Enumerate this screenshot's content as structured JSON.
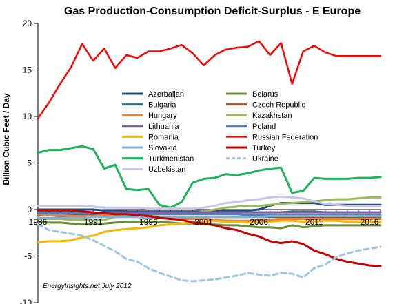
{
  "chart_data": {
    "type": "line",
    "title": "Gas Production-Consumption  Deficit-Surplus - E Europe",
    "xlabel": "",
    "ylabel": "Billion Cubic Feet / Day",
    "xlim": [
      1986,
      2017
    ],
    "ylim": [
      -10,
      20
    ],
    "x_ticks": [
      "1986",
      "1991",
      "1996",
      "2001",
      "2006",
      "2011",
      "2016"
    ],
    "y_ticks": [
      "20",
      "15",
      "10",
      "5",
      "0",
      "-5",
      "-10"
    ],
    "grid": false,
    "legend_position": "center",
    "source_note": "EnergyInsights.net July 2012",
    "x": [
      1986,
      1987,
      1988,
      1989,
      1990,
      1991,
      1992,
      1993,
      1994,
      1995,
      1996,
      1997,
      1998,
      1999,
      2000,
      2001,
      2002,
      2003,
      2004,
      2005,
      2006,
      2007,
      2008,
      2009,
      2010,
      2011,
      2012,
      2013,
      2014,
      2015,
      2016,
      2017
    ],
    "series": [
      {
        "name": "Azerbaijan",
        "color": "#1f4e79",
        "dash": false,
        "width": 3,
        "values": [
          0,
          0,
          0,
          0,
          0,
          0,
          -0.1,
          -0.1,
          -0.2,
          -0.2,
          -0.2,
          -0.2,
          -0.2,
          -0.2,
          -0.2,
          -0.2,
          -0.2,
          -0.1,
          -0.1,
          -0.1,
          0,
          0.4,
          0.7,
          0.7,
          0.7,
          0.7,
          0.5,
          0.5,
          0.5,
          0.5,
          0.5,
          0.5
        ]
      },
      {
        "name": "Belarus",
        "color": "#6b8e3a",
        "dash": false,
        "width": 3,
        "values": [
          -1.3,
          -1.4,
          -1.4,
          -1.5,
          -1.6,
          -1.6,
          -1.5,
          -1.4,
          -1.3,
          -1.3,
          -1.3,
          -1.3,
          -1.4,
          -1.5,
          -1.5,
          -1.6,
          -1.6,
          -1.7,
          -1.7,
          -1.8,
          -1.9,
          -1.9,
          -2.0,
          -1.7,
          -1.9,
          -1.8,
          -1.7,
          -1.7,
          -1.7,
          -1.7,
          -1.7,
          -1.7
        ]
      },
      {
        "name": "Bulgaria",
        "color": "#2e6f82",
        "dash": false,
        "width": 3,
        "values": [
          -0.6,
          -0.6,
          -0.6,
          -0.6,
          -0.6,
          -0.5,
          -0.5,
          -0.5,
          -0.5,
          -0.5,
          -0.5,
          -0.4,
          -0.4,
          -0.3,
          -0.3,
          -0.3,
          -0.3,
          -0.3,
          -0.3,
          -0.3,
          -0.3,
          -0.3,
          -0.3,
          -0.2,
          -0.2,
          -0.2,
          -0.3,
          -0.3,
          -0.3,
          -0.3,
          -0.3,
          -0.3
        ]
      },
      {
        "name": "Czech Republic",
        "color": "#a0522d",
        "dash": false,
        "width": 3,
        "values": [
          -0.6,
          -0.6,
          -0.7,
          -0.7,
          -0.7,
          -0.7,
          -0.7,
          -0.7,
          -0.7,
          -0.7,
          -0.8,
          -0.8,
          -0.8,
          -0.8,
          -0.8,
          -0.8,
          -0.8,
          -0.8,
          -0.8,
          -0.8,
          -0.8,
          -0.8,
          -0.8,
          -0.8,
          -0.8,
          -0.8,
          -0.8,
          -0.8,
          -0.8,
          -0.8,
          -0.8,
          -0.8
        ]
      },
      {
        "name": "Hungary",
        "color": "#e8803a",
        "dash": false,
        "width": 3,
        "values": [
          -0.5,
          -0.6,
          -0.6,
          -0.7,
          -0.7,
          -0.7,
          -0.6,
          -0.7,
          -0.7,
          -0.8,
          -0.9,
          -0.9,
          -1.0,
          -1.0,
          -1.0,
          -1.0,
          -1.1,
          -1.2,
          -1.2,
          -1.2,
          -1.1,
          -1.1,
          -1.0,
          -1.0,
          -1.0,
          -1.0,
          -1.0,
          -1.0,
          -1.0,
          -1.0,
          -1.0,
          -1.0
        ]
      },
      {
        "name": "Kazakhstan",
        "color": "#9bbb59",
        "dash": false,
        "width": 3,
        "values": [
          -0.9,
          -1.0,
          -1.0,
          -1.1,
          -1.1,
          -1.2,
          -1.1,
          -0.8,
          -0.7,
          -0.7,
          -0.6,
          -0.5,
          -0.5,
          -0.5,
          -0.4,
          -0.2,
          0.0,
          0.2,
          0.3,
          0.4,
          0.4,
          0.5,
          0.6,
          0.7,
          0.8,
          0.9,
          1.0,
          1.1,
          1.1,
          1.2,
          1.3,
          1.3
        ]
      },
      {
        "name": "Lithuania",
        "color": "#7f5fa8",
        "dash": false,
        "width": 3,
        "values": [
          -0.4,
          -0.4,
          -0.4,
          -0.4,
          -0.4,
          -0.4,
          -0.3,
          -0.3,
          -0.3,
          -0.3,
          -0.3,
          -0.3,
          -0.3,
          -0.3,
          -0.3,
          -0.3,
          -0.3,
          -0.3,
          -0.3,
          -0.3,
          -0.3,
          -0.3,
          -0.3,
          -0.3,
          -0.3,
          -0.3,
          -0.3,
          -0.3,
          -0.3,
          -0.3,
          -0.3,
          -0.3
        ]
      },
      {
        "name": "Poland",
        "color": "#4f81bd",
        "dash": false,
        "width": 3,
        "values": [
          -0.4,
          -0.4,
          -0.4,
          -0.4,
          -0.4,
          -0.4,
          -0.4,
          -0.5,
          -0.5,
          -0.5,
          -0.5,
          -0.5,
          -0.5,
          -0.5,
          -0.5,
          -0.5,
          -0.5,
          -0.5,
          -0.5,
          -0.6,
          -0.6,
          -0.6,
          -0.6,
          -0.6,
          -0.6,
          -0.6,
          -0.6,
          -0.6,
          -0.6,
          -0.6,
          -0.6,
          -0.6
        ]
      },
      {
        "name": "Romania",
        "color": "#f5b800",
        "dash": false,
        "width": 3,
        "values": [
          -3.5,
          -3.4,
          -3.4,
          -3.3,
          -3.0,
          -2.8,
          -2.4,
          -2.2,
          -2.1,
          -2.0,
          -1.9,
          -1.7,
          -1.6,
          -1.5,
          -1.4,
          -1.3,
          -1.2,
          -1.3,
          -1.3,
          -1.4,
          -1.4,
          -1.3,
          -1.2,
          -1.2,
          -1.3,
          -1.3,
          -1.2,
          -1.2,
          -1.3,
          -1.3,
          -1.3,
          -1.3
        ]
      },
      {
        "name": "Russian Federation",
        "color": "#ff0000",
        "dash": false,
        "width": 2.5,
        "values": [
          9.8,
          11.5,
          13.5,
          15.3,
          17.8,
          16.0,
          17.3,
          15.2,
          16.6,
          16.3,
          17.0,
          17.0,
          17.3,
          17.7,
          16.8,
          15.5,
          16.6,
          17.2,
          17.4,
          17.5,
          18.1,
          16.6,
          17.9,
          13.5,
          17.0,
          17.6,
          16.9,
          16.5,
          16.5,
          16.5,
          16.5,
          16.5
        ]
      },
      {
        "name": "Slovakia",
        "color": "#7fb0d8",
        "dash": false,
        "width": 3,
        "values": [
          -0.9,
          -0.9,
          -0.9,
          -0.9,
          -0.9,
          -0.8,
          -0.8,
          -0.8,
          -0.8,
          -0.8,
          -0.9,
          -0.8,
          -0.8,
          -0.8,
          -0.8,
          -0.8,
          -0.8,
          -0.8,
          -0.8,
          -0.8,
          -0.8,
          -0.7,
          -0.7,
          -0.7,
          -0.7,
          -0.7,
          -0.7,
          -0.7,
          -0.7,
          -0.7,
          -0.7,
          -0.7
        ]
      },
      {
        "name": "Turkey",
        "color": "#c00000",
        "dash": false,
        "width": 3,
        "values": [
          -0.1,
          -0.1,
          -0.1,
          -0.1,
          -0.2,
          -0.3,
          -0.4,
          -0.5,
          -0.5,
          -0.6,
          -0.7,
          -0.9,
          -1.0,
          -1.1,
          -1.4,
          -1.5,
          -1.7,
          -2.0,
          -2.2,
          -2.6,
          -2.9,
          -3.4,
          -3.6,
          -3.4,
          -3.7,
          -4.4,
          -4.8,
          -5.3,
          -5.6,
          -5.8,
          -6.0,
          -6.1
        ]
      },
      {
        "name": "Turkmenistan",
        "color": "#1fb25a",
        "dash": false,
        "width": 3,
        "values": [
          6.1,
          6.4,
          6.4,
          6.6,
          6.8,
          6.5,
          4.4,
          4.8,
          2.2,
          2.1,
          2.2,
          0.5,
          0.2,
          0.8,
          2.9,
          3.3,
          3.4,
          3.8,
          3.7,
          3.9,
          4.2,
          4.4,
          4.5,
          1.8,
          2.0,
          3.4,
          3.3,
          3.3,
          3.3,
          3.4,
          3.4,
          3.5
        ]
      },
      {
        "name": "Ukraine",
        "color": "#9ec7de",
        "dash": true,
        "width": 3,
        "values": [
          -1.6,
          -2.2,
          -2.4,
          -2.6,
          -2.8,
          -3.3,
          -3.9,
          -4.5,
          -5.3,
          -5.6,
          -6.3,
          -6.8,
          -7.2,
          -7.6,
          -7.7,
          -7.6,
          -7.5,
          -7.3,
          -7.1,
          -6.8,
          -7.0,
          -7.1,
          -6.8,
          -6.9,
          -7.3,
          -6.3,
          -5.9,
          -5.1,
          -4.7,
          -4.4,
          -4.2,
          -4.0
        ]
      },
      {
        "name": "Uzbekistan",
        "color": "#c6c6e6",
        "dash": false,
        "width": 3,
        "values": [
          0.4,
          0.4,
          0.4,
          0.4,
          0.4,
          0.3,
          0.2,
          0.2,
          0.2,
          0.2,
          0.1,
          0.1,
          0.1,
          0.1,
          0.1,
          0.2,
          0.4,
          0.7,
          0.8,
          1.0,
          1.1,
          1.3,
          1.4,
          1.3,
          1.2,
          0.9,
          0.6,
          0.5,
          0.4,
          0.4,
          0.4,
          0.4
        ]
      }
    ]
  }
}
